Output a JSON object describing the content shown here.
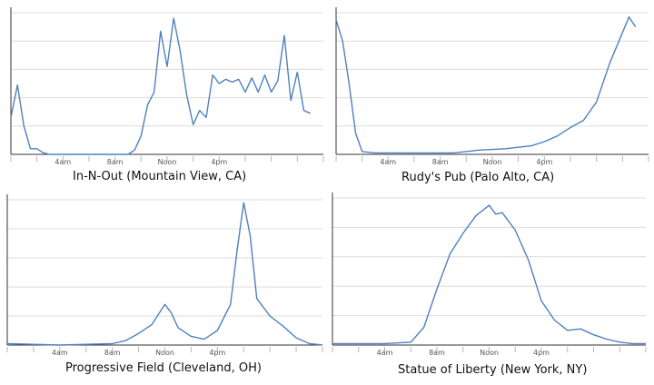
{
  "colors": {
    "line": "#4f81bd",
    "grid": "#dcdcdc",
    "axis": "#333333"
  },
  "chart_data": [
    {
      "type": "line",
      "title": "In-N-Out (Mountain View, CA)",
      "xlabel": "",
      "ylabel": "",
      "x_unit": "hour of day",
      "xlim": [
        0,
        24
      ],
      "ylim": [
        0,
        100
      ],
      "grid": true,
      "tick_labels": [
        {
          "label": "4am",
          "hour": 4
        },
        {
          "label": "8am",
          "hour": 8
        },
        {
          "label": "Noon",
          "hour": 12
        },
        {
          "label": "4pm",
          "hour": 16
        }
      ],
      "series": [
        {
          "points": [
            [
              0,
              26
            ],
            [
              0.5,
              49
            ],
            [
              1,
              20
            ],
            [
              1.5,
              4
            ],
            [
              2,
              4
            ],
            [
              2.5,
              1
            ],
            [
              3,
              0
            ],
            [
              6,
              0
            ],
            [
              9,
              0
            ],
            [
              9.5,
              3
            ],
            [
              10,
              13
            ],
            [
              10.5,
              35
            ],
            [
              11,
              44
            ],
            [
              11.5,
              87
            ],
            [
              12,
              62
            ],
            [
              12.5,
              96
            ],
            [
              13,
              73
            ],
            [
              13.5,
              42
            ],
            [
              14,
              21
            ],
            [
              14.5,
              31
            ],
            [
              15,
              26
            ],
            [
              15.5,
              56
            ],
            [
              16,
              50
            ],
            [
              16.5,
              53
            ],
            [
              17,
              51
            ],
            [
              17.5,
              53
            ],
            [
              18,
              44
            ],
            [
              18.5,
              54
            ],
            [
              19,
              44
            ],
            [
              19.5,
              56
            ],
            [
              20,
              44
            ],
            [
              20.5,
              52
            ],
            [
              21,
              84
            ],
            [
              21.5,
              38
            ],
            [
              22,
              58
            ],
            [
              22.5,
              31
            ],
            [
              23,
              29
            ]
          ]
        }
      ]
    },
    {
      "type": "line",
      "title": "Rudy's Pub (Palo Alto, CA)",
      "xlabel": "",
      "ylabel": "",
      "x_unit": "hour of day",
      "xlim": [
        0,
        24
      ],
      "ylim": [
        0,
        100
      ],
      "grid": true,
      "tick_labels": [
        {
          "label": "4am",
          "hour": 4
        },
        {
          "label": "8am",
          "hour": 8
        },
        {
          "label": "Noon",
          "hour": 12
        },
        {
          "label": "4pm",
          "hour": 16
        }
      ],
      "series": [
        {
          "points": [
            [
              0,
              95
            ],
            [
              0.5,
              80
            ],
            [
              1,
              50
            ],
            [
              1.5,
              15
            ],
            [
              2,
              2
            ],
            [
              3,
              1
            ],
            [
              5,
              1
            ],
            [
              7,
              1
            ],
            [
              9,
              1
            ],
            [
              11,
              3
            ],
            [
              13,
              4
            ],
            [
              15,
              6
            ],
            [
              16,
              9
            ],
            [
              17,
              13
            ],
            [
              18,
              19
            ],
            [
              19,
              24
            ],
            [
              20,
              37
            ],
            [
              21,
              64
            ],
            [
              22,
              86
            ],
            [
              22.5,
              97
            ],
            [
              23,
              90
            ]
          ]
        }
      ]
    },
    {
      "type": "line",
      "title": "Progressive Field (Cleveland, OH)",
      "xlabel": "",
      "ylabel": "",
      "x_unit": "hour of day",
      "xlim": [
        0,
        24
      ],
      "ylim": [
        0,
        100
      ],
      "grid": true,
      "tick_labels": [
        {
          "label": "4am",
          "hour": 4
        },
        {
          "label": "8am",
          "hour": 8
        },
        {
          "label": "Noon",
          "hour": 12
        },
        {
          "label": "4pm",
          "hour": 16
        }
      ],
      "series": [
        {
          "points": [
            [
              0,
              1
            ],
            [
              4,
              0
            ],
            [
              8,
              1
            ],
            [
              9,
              3
            ],
            [
              10,
              8
            ],
            [
              11,
              14
            ],
            [
              12,
              28
            ],
            [
              12.5,
              22
            ],
            [
              13,
              12
            ],
            [
              14,
              6
            ],
            [
              15,
              4
            ],
            [
              16,
              10
            ],
            [
              17,
              28
            ],
            [
              17.5,
              65
            ],
            [
              18,
              98
            ],
            [
              18.5,
              75
            ],
            [
              19,
              32
            ],
            [
              20,
              20
            ],
            [
              21,
              13
            ],
            [
              22,
              5
            ],
            [
              23,
              1
            ],
            [
              24,
              0
            ]
          ]
        }
      ]
    },
    {
      "type": "line",
      "title": "Statue of Liberty (New York, NY)",
      "xlabel": "",
      "ylabel": "",
      "x_unit": "hour of day",
      "xlim": [
        0,
        24
      ],
      "ylim": [
        0,
        100
      ],
      "grid": true,
      "tick_labels": [
        {
          "label": "4am",
          "hour": 4
        },
        {
          "label": "8am",
          "hour": 8
        },
        {
          "label": "Noon",
          "hour": 12
        },
        {
          "label": "4pm",
          "hour": 16
        }
      ],
      "series": [
        {
          "points": [
            [
              0,
              1
            ],
            [
              4,
              1
            ],
            [
              6,
              2
            ],
            [
              7,
              12
            ],
            [
              8,
              38
            ],
            [
              9,
              62
            ],
            [
              10,
              76
            ],
            [
              11,
              88
            ],
            [
              12,
              95
            ],
            [
              12.5,
              89
            ],
            [
              13,
              90
            ],
            [
              14,
              78
            ],
            [
              15,
              58
            ],
            [
              16,
              30
            ],
            [
              17,
              17
            ],
            [
              18,
              10
            ],
            [
              19,
              11
            ],
            [
              20,
              7
            ],
            [
              21,
              4
            ],
            [
              22,
              2
            ],
            [
              23,
              1
            ],
            [
              24,
              1
            ]
          ]
        }
      ]
    }
  ]
}
